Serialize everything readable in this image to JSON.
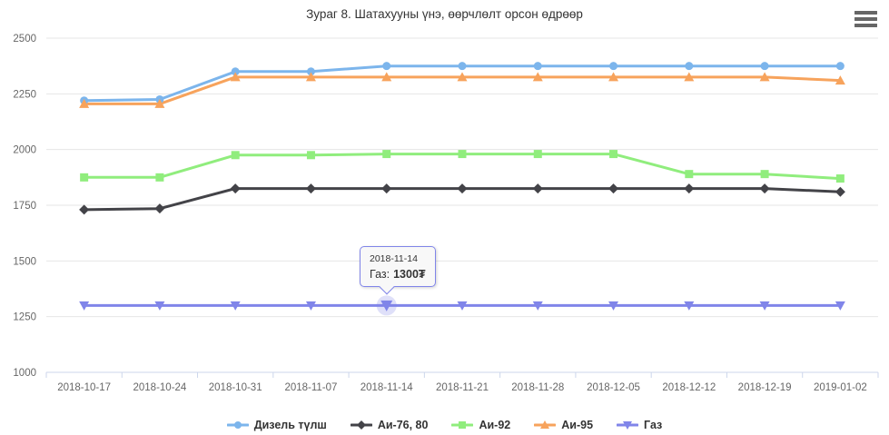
{
  "title": "Зураг 8. Шатахууны үнэ, өөрчлөлт орсон өдрөөр",
  "menu": {
    "icon": "hamburger-icon"
  },
  "axis": {
    "y_labels": [
      "1000",
      "1250",
      "1500",
      "1750",
      "2000",
      "2250",
      "2500"
    ]
  },
  "chart_data": {
    "type": "line",
    "categories": [
      "2018-10-17",
      "2018-10-24",
      "2018-10-31",
      "2018-11-07",
      "2018-11-14",
      "2018-11-21",
      "2018-11-28",
      "2018-12-05",
      "2018-12-12",
      "2018-12-19",
      "2019-01-02"
    ],
    "series": [
      {
        "name": "Дизель түлш",
        "color": "#7cb5ec",
        "marker": "circle",
        "values": [
          2220,
          2225,
          2350,
          2350,
          2375,
          2375,
          2375,
          2375,
          2375,
          2375,
          2375
        ]
      },
      {
        "name": "Аи-76, 80",
        "color": "#434348",
        "marker": "diamond",
        "values": [
          1730,
          1735,
          1825,
          1825,
          1825,
          1825,
          1825,
          1825,
          1825,
          1825,
          1810
        ]
      },
      {
        "name": "Аи-92",
        "color": "#90ed7d",
        "marker": "square",
        "values": [
          1875,
          1875,
          1975,
          1975,
          1980,
          1980,
          1980,
          1980,
          1890,
          1890,
          1870
        ]
      },
      {
        "name": "Аи-95",
        "color": "#f7a35c",
        "marker": "triangle",
        "values": [
          2205,
          2205,
          2325,
          2325,
          2325,
          2325,
          2325,
          2325,
          2325,
          2325,
          2310
        ]
      },
      {
        "name": "Газ",
        "color": "#8085e9",
        "marker": "triangle-down",
        "values": [
          1300,
          1300,
          1300,
          1300,
          1300,
          1300,
          1300,
          1300,
          1300,
          1300,
          1300
        ]
      }
    ],
    "title": "Зураг 8. Шатахууны үнэ, өөрчлөлт орсон өдрөөр",
    "xlabel": "",
    "ylabel": "",
    "ylim": [
      1000,
      2500
    ],
    "ytick_step": 250,
    "grid": true,
    "legend_position": "bottom"
  },
  "tooltip": {
    "date": "2018-11-14",
    "series_label": "Газ:",
    "value": "1300₮",
    "point": {
      "series_index": 4,
      "category_index": 4
    }
  },
  "colors": {
    "grid_line": "#e6e6e6",
    "axis_line": "#ccd6eb",
    "axis_label": "#666666",
    "title_text": "#333333",
    "tooltip_border": "#8085e9"
  }
}
